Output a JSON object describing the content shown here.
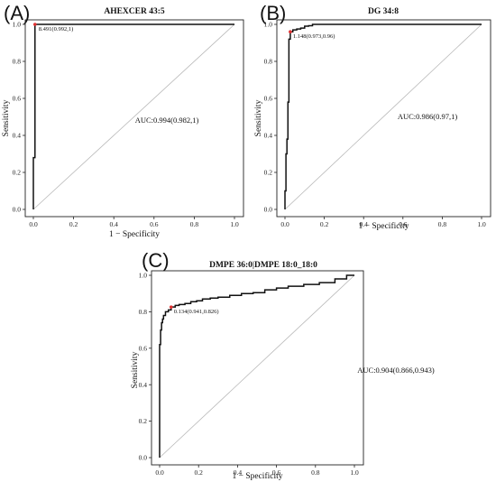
{
  "panels": [
    {
      "letter": "(A)",
      "title": "AHEXCER 43:5",
      "auc_text": "AUC:0.994(0.982,1)",
      "threshold_text": "8.491(0.992,1)"
    },
    {
      "letter": "(B)",
      "title": "DG 34:8",
      "auc_text": "AUC:0.986(0.97,1)",
      "threshold_text": "1.148(0.973,0.96)"
    },
    {
      "letter": "(C)",
      "title": "DMPE 36:0|DMPE 18:0_18:0",
      "auc_text": "AUC:0.904(0.866,0.943)",
      "threshold_text": "0.134(0.941,0.826)"
    }
  ],
  "colors": {
    "curve": "#111111",
    "diagonal": "#b8b8b8",
    "threshold_point": "#e03030",
    "frame": "#222222"
  },
  "chart_data": [
    {
      "type": "line",
      "title": "AHEXCER 43:5",
      "xlabel": "1 − Specificity",
      "ylabel": "Sensitivity",
      "xlim": [
        0,
        1
      ],
      "ylim": [
        0,
        1
      ],
      "xticks": [
        "0.0",
        "0.2",
        "0.4",
        "0.6",
        "0.8",
        "1.0"
      ],
      "yticks": [
        "0.0",
        "0.2",
        "0.4",
        "0.6",
        "0.8",
        "1.0"
      ],
      "grid": false,
      "auc": 0.994,
      "auc_ci": [
        0.982,
        1
      ],
      "threshold": {
        "cutoff": 8.491,
        "specificity": 0.992,
        "sensitivity": 1,
        "x": 0.008,
        "y": 1
      },
      "series": [
        {
          "x": [
            0,
            0,
            0.008,
            0.008,
            0.008,
            1
          ],
          "y": [
            0,
            0.28,
            0.28,
            0.9,
            1,
            1
          ]
        }
      ]
    },
    {
      "type": "line",
      "title": "DG 34:8",
      "xlabel": "1 − Specificity",
      "ylabel": "Sensitivity",
      "xlim": [
        0,
        1
      ],
      "ylim": [
        0,
        1
      ],
      "xticks": [
        "0.0",
        "0.2",
        "0.4",
        "0.6",
        "0.8",
        "1.0"
      ],
      "yticks": [
        "0.0",
        "0.2",
        "0.4",
        "0.6",
        "0.8",
        "1.0"
      ],
      "grid": false,
      "auc": 0.986,
      "auc_ci": [
        0.97,
        1
      ],
      "threshold": {
        "cutoff": 1.148,
        "specificity": 0.973,
        "sensitivity": 0.96,
        "x": 0.027,
        "y": 0.96
      },
      "series": [
        {
          "x": [
            0,
            0,
            0.005,
            0.005,
            0.01,
            0.01,
            0.015,
            0.015,
            0.02,
            0.02,
            0.027,
            0.027,
            0.04,
            0.04,
            0.06,
            0.06,
            0.08,
            0.08,
            0.1,
            0.1,
            0.12,
            0.12,
            0.14,
            0.14,
            1
          ],
          "y": [
            0,
            0.1,
            0.1,
            0.3,
            0.3,
            0.38,
            0.38,
            0.58,
            0.58,
            0.92,
            0.92,
            0.96,
            0.96,
            0.97,
            0.97,
            0.975,
            0.975,
            0.98,
            0.98,
            0.99,
            0.99,
            0.993,
            0.993,
            1,
            1
          ]
        }
      ]
    },
    {
      "type": "line",
      "title": "DMPE 36:0|DMPE 18:0_18:0",
      "xlabel": "1 − Specificity",
      "ylabel": "Sensitivity",
      "xlim": [
        0,
        1
      ],
      "ylim": [
        0,
        1
      ],
      "xticks": [
        "0.0",
        "0.2",
        "0.4",
        "0.6",
        "0.8",
        "1.0"
      ],
      "yticks": [
        "0.0",
        "0.2",
        "0.4",
        "0.6",
        "0.8",
        "1.0"
      ],
      "grid": false,
      "auc": 0.904,
      "auc_ci": [
        0.866,
        0.943
      ],
      "threshold": {
        "cutoff": 0.134,
        "specificity": 0.941,
        "sensitivity": 0.826,
        "x": 0.059,
        "y": 0.826
      },
      "series": [
        {
          "x": [
            0,
            0,
            0.005,
            0.005,
            0.01,
            0.01,
            0.015,
            0.015,
            0.02,
            0.02,
            0.03,
            0.03,
            0.045,
            0.045,
            0.059,
            0.059,
            0.08,
            0.08,
            0.1,
            0.1,
            0.13,
            0.13,
            0.16,
            0.16,
            0.19,
            0.19,
            0.22,
            0.22,
            0.26,
            0.26,
            0.3,
            0.3,
            0.36,
            0.36,
            0.42,
            0.42,
            0.48,
            0.48,
            0.54,
            0.54,
            0.6,
            0.6,
            0.66,
            0.66,
            0.74,
            0.74,
            0.82,
            0.82,
            0.9,
            0.9,
            0.96,
            0.96,
            1
          ],
          "y": [
            0,
            0.62,
            0.62,
            0.7,
            0.7,
            0.74,
            0.74,
            0.76,
            0.76,
            0.78,
            0.78,
            0.8,
            0.8,
            0.81,
            0.81,
            0.826,
            0.826,
            0.835,
            0.835,
            0.84,
            0.84,
            0.845,
            0.845,
            0.855,
            0.855,
            0.86,
            0.86,
            0.87,
            0.87,
            0.875,
            0.875,
            0.88,
            0.88,
            0.89,
            0.89,
            0.9,
            0.9,
            0.905,
            0.905,
            0.92,
            0.92,
            0.93,
            0.93,
            0.94,
            0.94,
            0.95,
            0.95,
            0.96,
            0.96,
            0.98,
            0.98,
            1,
            1
          ]
        }
      ]
    }
  ]
}
